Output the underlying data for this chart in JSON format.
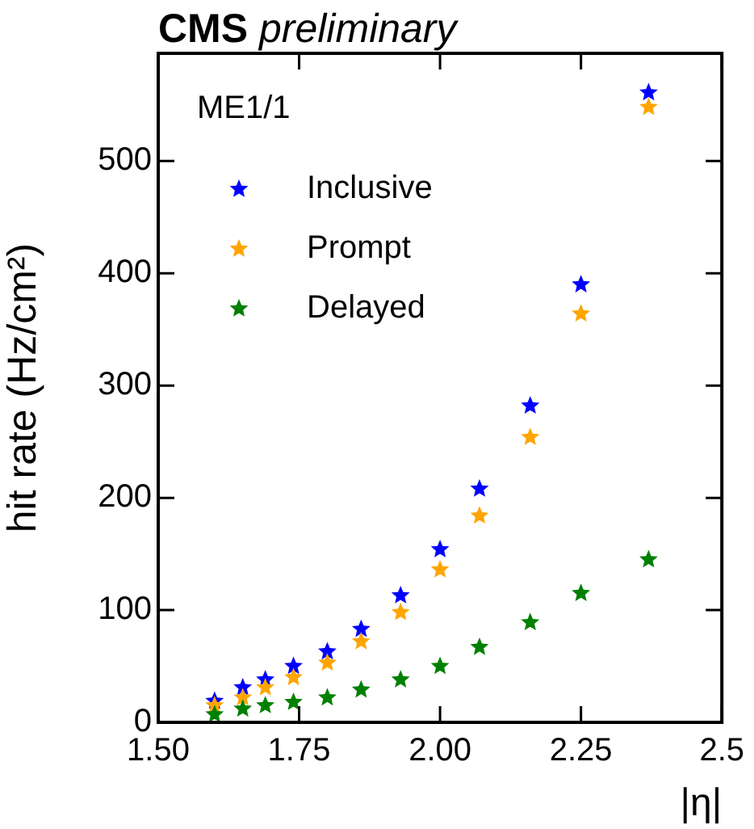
{
  "chart_data": {
    "type": "scatter",
    "title": "CMS preliminary",
    "xlabel": "|η|",
    "ylabel": "hit rate (Hz/cm²)",
    "annotations": [
      "ME1/1"
    ],
    "x": [
      1.6,
      1.65,
      1.69,
      1.74,
      1.8,
      1.86,
      1.93,
      2.0,
      2.07,
      2.16,
      2.25,
      2.37
    ],
    "series": [
      {
        "name": "Inclusive",
        "color": "#0000ff",
        "values": [
          19,
          31,
          38,
          50,
          63,
          83,
          113,
          154,
          208,
          282,
          390,
          561
        ]
      },
      {
        "name": "Prompt",
        "color": "#ffa500",
        "values": [
          15,
          22,
          31,
          40,
          53,
          72,
          98,
          136,
          184,
          254,
          364,
          548
        ]
      },
      {
        "name": "Delayed",
        "color": "#008000",
        "values": [
          7,
          12,
          15,
          18,
          22,
          29,
          38,
          50,
          67,
          89,
          115,
          145
        ]
      }
    ],
    "xlim": [
      1.5,
      2.5
    ],
    "xticks": [
      {
        "value": 1.5,
        "label": "1.50"
      },
      1.75,
      {
        "value": 2,
        "label": "2.00"
      },
      2.25,
      2.5
    ],
    "ylim": [
      0,
      596
    ],
    "yticks": [
      0,
      100,
      200,
      300,
      400,
      500
    ],
    "grid": false,
    "legend": "top left",
    "marker": "star"
  }
}
